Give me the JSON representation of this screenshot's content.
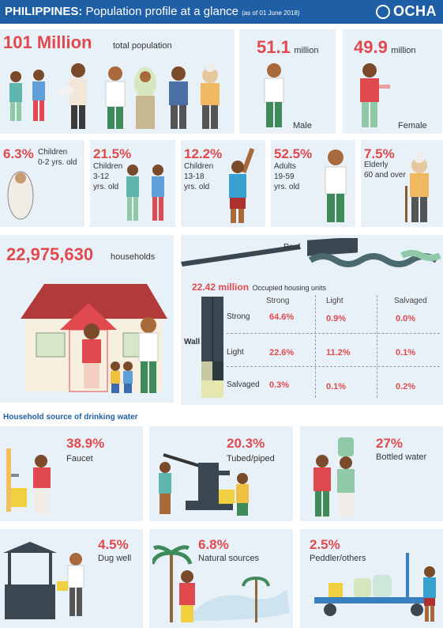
{
  "header": {
    "country": "PHILIPPINES:",
    "title": "Population profile at a glance",
    "date_note": "(as of 01 June 2018)",
    "logo": "OCHA"
  },
  "population": {
    "value": "101 Million",
    "label": "total population"
  },
  "male": {
    "value": "51.1",
    "unit": "million",
    "label": "Male"
  },
  "female": {
    "value": "49.9",
    "unit": "million",
    "label": "Female"
  },
  "age_groups": [
    {
      "pct": "6.3%",
      "line1": "Children",
      "line2": "0-2 yrs. old"
    },
    {
      "pct": "21.5%",
      "line1": "Children",
      "line2": "3-12",
      "line3": "yrs. old"
    },
    {
      "pct": "12.2%",
      "line1": "Children",
      "line2": "13-18",
      "line3": "yrs. old"
    },
    {
      "pct": "52.5%",
      "line1": "Adults",
      "line2": "19-59",
      "line3": "yrs. old"
    },
    {
      "pct": "7.5%",
      "line1": "Elderly",
      "line2": "60 and over"
    }
  ],
  "households": {
    "value": "22,975,630",
    "label": "households"
  },
  "housing": {
    "roof_label": "Roof",
    "wall_label": "Wall",
    "units_value": "22.42 million",
    "units_label": "Occupied housing units",
    "columns": [
      "Strong",
      "Light",
      "Salvaged"
    ],
    "rows": [
      {
        "label": "Strong",
        "values": [
          "64.6%",
          "0.9%",
          "0.0%"
        ]
      },
      {
        "label": "Light",
        "values": [
          "22.6%",
          "11.2%",
          "0.1%"
        ]
      },
      {
        "label": "Salvaged",
        "values": [
          "0.3%",
          "0.1%",
          "0.2%"
        ]
      }
    ]
  },
  "water_title": "Household source of drinking water",
  "water_sources": [
    {
      "pct": "38.9%",
      "label": "Faucet"
    },
    {
      "pct": "20.3%",
      "label": "Tubed/piped"
    },
    {
      "pct": "27%",
      "label": "Bottled water"
    },
    {
      "pct": "4.5%",
      "label": "Dug well"
    },
    {
      "pct": "6.8%",
      "label": "Natural sources"
    },
    {
      "pct": "2.5%",
      "label": "Peddler/others"
    }
  ],
  "colors": {
    "accent": "#e04a4e",
    "header": "#1f5fa5",
    "panel": "#e8f1f8"
  }
}
